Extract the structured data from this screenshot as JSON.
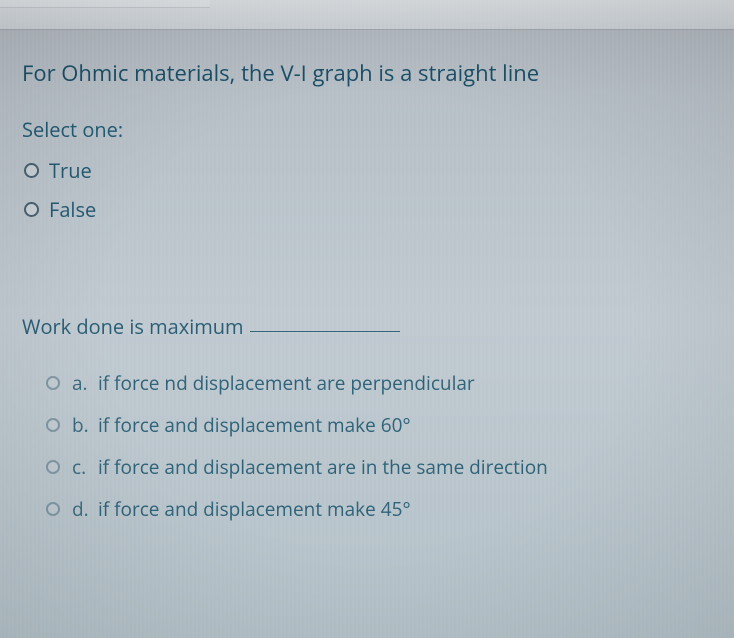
{
  "q1": {
    "text": "For Ohmic materials, the V-I graph is a straight line",
    "select_label": "Select one:",
    "options": [
      {
        "label": "True"
      },
      {
        "label": "False"
      }
    ]
  },
  "q2": {
    "text": "Work done is maximum",
    "options": [
      {
        "letter": "a.",
        "text": "if force nd displacement are perpendicular"
      },
      {
        "letter": "b.",
        "text": "if force and displacement make 60°"
      },
      {
        "letter": "c.",
        "text": "if force and displacement are in the same direction"
      },
      {
        "letter": "d.",
        "text": "if force and displacement make 45°"
      }
    ]
  }
}
